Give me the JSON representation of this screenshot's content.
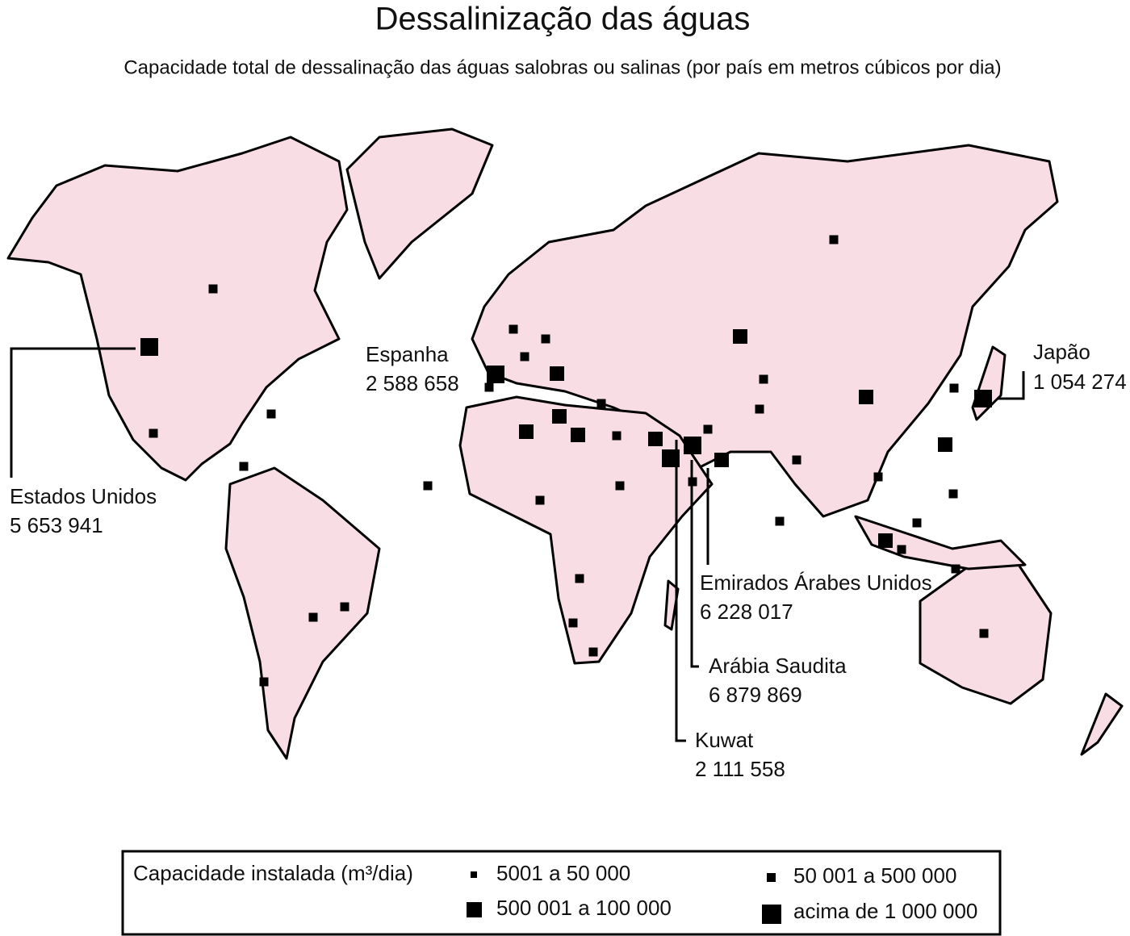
{
  "header": {
    "title": "Dessalinização das águas",
    "subtitle": "Capacidade total de dessalinação das águas salobras ou salinas (por país em metros cúbicos por dia)"
  },
  "callouts": [
    {
      "country": "Estados Unidos",
      "value": "5 653 941"
    },
    {
      "country": "Espanha",
      "value": "2 588 658"
    },
    {
      "country": "Japão",
      "value": "1 054 274"
    },
    {
      "country": "Emirados Árabes Unidos",
      "value": "6 228 017"
    },
    {
      "country": "Arábia Saudita",
      "value": "6 879 869"
    },
    {
      "country": "Kuwat",
      "value": "2 111 558"
    }
  ],
  "legend": {
    "title": "Capacidade instalada (m³/dia)",
    "items": [
      "5001 a 50 000",
      "50 001 a 500 000",
      "500 001 a 100 000",
      "acima de 1 000 000"
    ]
  }
}
